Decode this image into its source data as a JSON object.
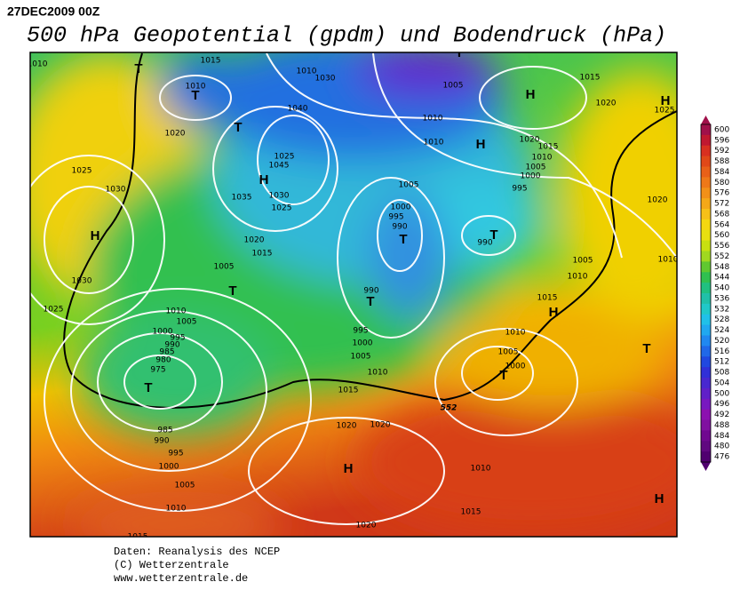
{
  "header": {
    "date": "27DEC2009 00Z",
    "title": "500 hPa Geopotential (gpdm) und Bodendruck (hPa)"
  },
  "credits": [
    "Daten: Reanalysis des NCEP",
    "(C) Wetterzentrale",
    "www.wetterzentrale.de"
  ],
  "colorbar": {
    "labels": [
      600,
      596,
      592,
      588,
      584,
      580,
      576,
      572,
      568,
      564,
      560,
      556,
      552,
      548,
      544,
      540,
      536,
      532,
      528,
      524,
      520,
      516,
      512,
      508,
      504,
      500,
      496,
      492,
      488,
      484,
      480,
      476
    ]
  },
  "contour_label": "552",
  "isobar_labels": [
    1010,
    1015,
    1010,
    1020,
    1010,
    1030,
    1040,
    1025,
    1045,
    1035,
    1030,
    1025,
    1025,
    1030,
    1020,
    1015,
    1005,
    1030,
    1025,
    1010,
    1005,
    1000,
    995,
    990,
    985,
    980,
    975,
    985,
    990,
    995,
    1000,
    1005,
    1010,
    1015,
    1020,
    1020,
    1020,
    1015,
    1010,
    1005,
    1000,
    995,
    990,
    1000,
    995,
    990,
    1005,
    1010,
    1010,
    1005,
    1015,
    1020,
    1025,
    1020,
    1015,
    1010,
    1005,
    1000,
    995,
    990,
    1020,
    1005,
    1010,
    1015,
    1010,
    1005,
    1000,
    1010,
    1015,
    1010
  ],
  "pressure_centers": [
    "H",
    "H",
    "H",
    "H",
    "H",
    "H",
    "H",
    "H",
    "T",
    "T",
    "T",
    "T",
    "T",
    "T",
    "T",
    "T",
    "T",
    "T",
    "T"
  ]
}
